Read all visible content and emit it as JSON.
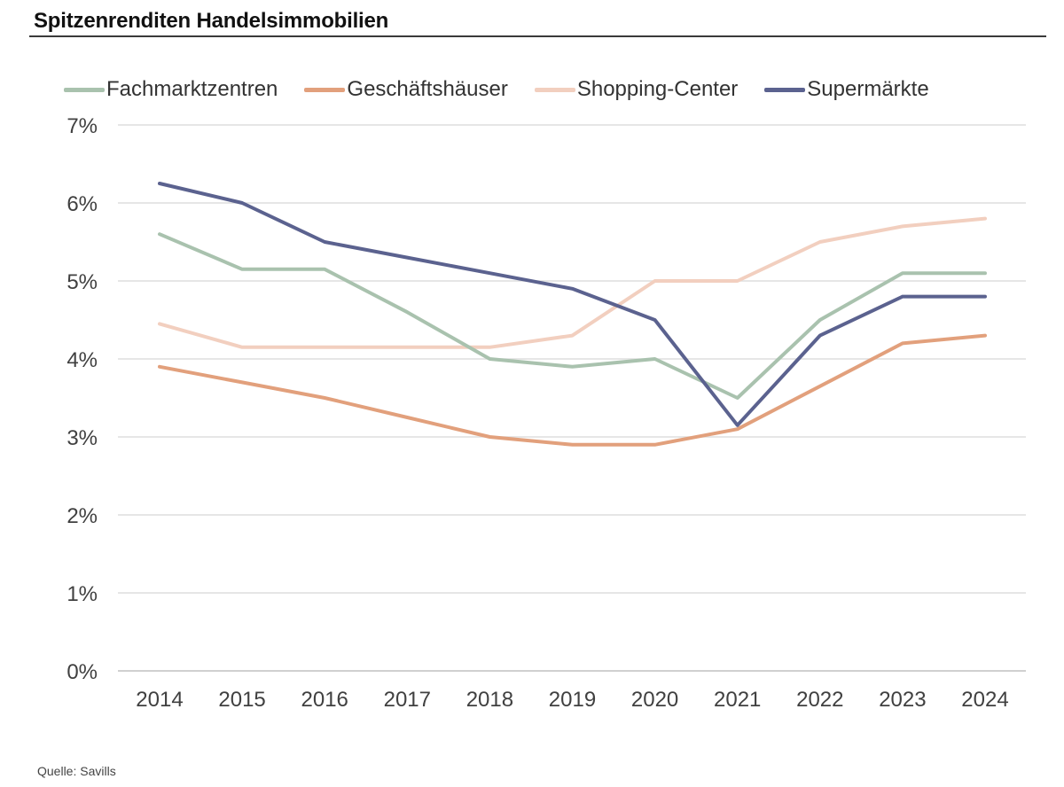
{
  "title": "Spitzenrenditen Handelsimmobilien",
  "source": "Quelle: Savills",
  "chart_data": {
    "type": "line",
    "title": "Spitzenrenditen Handelsimmobilien",
    "xlabel": "",
    "ylabel": "",
    "x": [
      "2014",
      "2015",
      "2016",
      "2017",
      "2018",
      "2019",
      "2020",
      "2021",
      "2022",
      "2023",
      "2024"
    ],
    "ylim": [
      0,
      7
    ],
    "yticks": [
      0,
      1,
      2,
      3,
      4,
      5,
      6,
      7
    ],
    "ytick_labels": [
      "0%",
      "1%",
      "2%",
      "3%",
      "4%",
      "5%",
      "6%",
      "7%"
    ],
    "grid": true,
    "legend_position": "top",
    "series": [
      {
        "name": "Fachmarktzentren",
        "color": "#a9c2ae",
        "values": [
          5.6,
          5.15,
          5.15,
          4.6,
          4.0,
          3.9,
          4.0,
          3.5,
          4.5,
          5.1,
          5.1
        ]
      },
      {
        "name": "Geschäftshäuser",
        "color": "#e2a07c",
        "values": [
          3.9,
          3.7,
          3.5,
          3.25,
          3.0,
          2.9,
          2.9,
          3.1,
          3.65,
          4.2,
          4.3
        ]
      },
      {
        "name": "Shopping-Center",
        "color": "#f2cfbf",
        "values": [
          4.45,
          4.15,
          4.15,
          4.15,
          4.15,
          4.3,
          5.0,
          5.0,
          5.5,
          5.7,
          5.8
        ]
      },
      {
        "name": "Supermärkte",
        "color": "#5b628f",
        "values": [
          6.25,
          6.0,
          5.5,
          5.3,
          5.1,
          4.9,
          4.5,
          3.15,
          4.3,
          4.8,
          4.8
        ]
      }
    ]
  }
}
